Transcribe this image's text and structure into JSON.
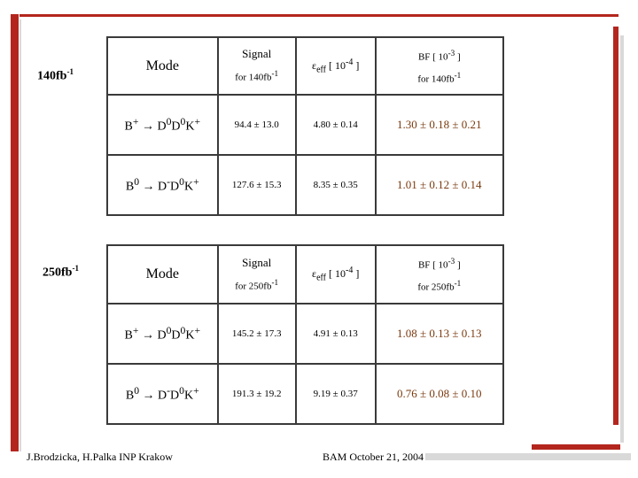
{
  "footer": {
    "left": "J.Brodzicka, H.Palka  INP Krakow",
    "right": "BAM   October 21, 2004"
  },
  "tables": [
    {
      "lumi": "140fb",
      "lumi_exp": "-1",
      "headers": {
        "mode": "Mode",
        "signal": "Signal",
        "signal_sub": "for 140fb",
        "signal_sub_exp": "-1",
        "eff_symbol": "ε",
        "eff_sub": "eff",
        "eff_unit": " [ 10",
        "eff_exp": "-4",
        "eff_close": " ]",
        "bf": "BF [ 10",
        "bf_exp": "-3",
        "bf_close": " ]",
        "bf_sub": "for 140fb",
        "bf_sub_exp": "-1"
      },
      "rows": [
        {
          "decay": {
            "parent": "B",
            "parent_sup": "+",
            "arrow": " → ",
            "d1": "D",
            "d1_sup": "0",
            "d2": "D",
            "d2_sup": "0",
            "k": "K",
            "k_sup": "+"
          },
          "signal": "94.4 ± 13.0",
          "eff": "4.80 ± 0.14",
          "bf": "1.30 ± 0.18 ± 0.21"
        },
        {
          "decay": {
            "parent": "B",
            "parent_sup": "0",
            "arrow": " → ",
            "d1": "D",
            "d1_sup": "-",
            "d2": "D",
            "d2_sup": "0",
            "k": "K",
            "k_sup": "+"
          },
          "signal": "127.6 ± 15.3",
          "eff": "8.35 ± 0.35",
          "bf": "1.01 ± 0.12 ± 0.14"
        }
      ]
    },
    {
      "lumi": "250fb",
      "lumi_exp": "-1",
      "headers": {
        "mode": "Mode",
        "signal": "Signal",
        "signal_sub": "for 250fb",
        "signal_sub_exp": "-1",
        "eff_symbol": "ε",
        "eff_sub": "eff",
        "eff_unit": " [ 10",
        "eff_exp": "-4",
        "eff_close": " ]",
        "bf": "BF [ 10",
        "bf_exp": "-3",
        "bf_close": " ]",
        "bf_sub": "for 250fb",
        "bf_sub_exp": "-1"
      },
      "rows": [
        {
          "decay": {
            "parent": "B",
            "parent_sup": "+",
            "arrow": " → ",
            "d1": "D",
            "d1_sup": "0",
            "d2": "D",
            "d2_sup": "0",
            "k": "K",
            "k_sup": "+"
          },
          "signal": "145.2 ± 17.3",
          "eff": "4.91 ± 0.13",
          "bf": "1.08 ± 0.13 ± 0.13"
        },
        {
          "decay": {
            "parent": "B",
            "parent_sup": "0",
            "arrow": " → ",
            "d1": "D",
            "d1_sup": "-",
            "d2": "D",
            "d2_sup": "0",
            "k": "K",
            "k_sup": "+"
          },
          "signal": "191.3 ± 19.2",
          "eff": "9.19 ± 0.37",
          "bf": "0.76 ± 0.08 ± 0.10"
        }
      ]
    }
  ]
}
